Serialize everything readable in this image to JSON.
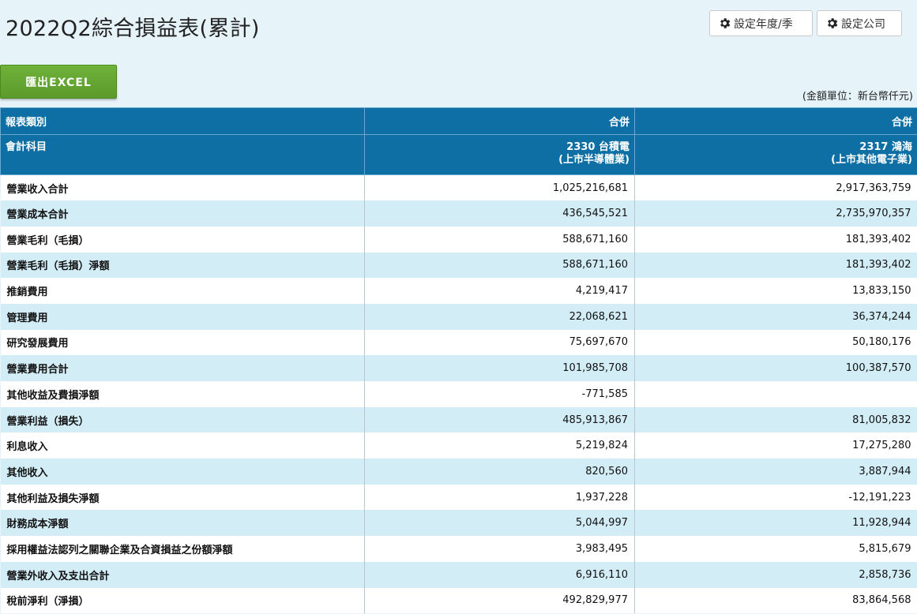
{
  "page": {
    "title": "2022Q2綜合損益表(累計)",
    "set_period_label": "設定年度/季",
    "set_company_label": "設定公司",
    "export_label": "匯出EXCEL",
    "unit_note": "(金額單位：新台幣仟元)"
  },
  "table": {
    "header_row1": {
      "label": "報表類別",
      "col1": "合併",
      "col2": "合併"
    },
    "header_row2": {
      "label": "會計科目",
      "col1_line1": "2330 台積電",
      "col1_line2": "(上市半導體業)",
      "col2_line1": "2317 鴻海",
      "col2_line2": "(上市其他電子業)"
    },
    "rows": [
      {
        "label": "營業收入合計",
        "level": 0,
        "v1": "1,025,216,681",
        "v2": "2,917,363,759"
      },
      {
        "label": "營業成本合計",
        "level": 0,
        "v1": "436,545,521",
        "v2": "2,735,970,357"
      },
      {
        "label": "營業毛利（毛損）",
        "level": 0,
        "v1": "588,671,160",
        "v2": "181,393,402"
      },
      {
        "label": "營業毛利（毛損）淨額",
        "level": 0,
        "v1": "588,671,160",
        "v2": "181,393,402"
      },
      {
        "label": "推銷費用",
        "level": 2,
        "v1": "4,219,417",
        "v2": "13,833,150"
      },
      {
        "label": "管理費用",
        "level": 2,
        "v1": "22,068,621",
        "v2": "36,374,244"
      },
      {
        "label": "研究發展費用",
        "level": 2,
        "v1": "75,697,670",
        "v2": "50,180,176"
      },
      {
        "label": "營業費用合計",
        "level": 1,
        "v1": "101,985,708",
        "v2": "100,387,570"
      },
      {
        "label": "其他收益及費損淨額",
        "level": 1,
        "v1": "-771,585",
        "v2": ""
      },
      {
        "label": "營業利益（損失）",
        "level": 0,
        "v1": "485,913,867",
        "v2": "81,005,832"
      },
      {
        "label": "利息收入",
        "level": 2,
        "v1": "5,219,824",
        "v2": "17,275,280"
      },
      {
        "label": "其他收入",
        "level": 2,
        "v1": "820,560",
        "v2": "3,887,944"
      },
      {
        "label": "其他利益及損失淨額",
        "level": 2,
        "v1": "1,937,228",
        "v2": "-12,191,223"
      },
      {
        "label": "財務成本淨額",
        "level": 2,
        "v1": "5,044,997",
        "v2": "11,928,944"
      },
      {
        "label": "採用權益法認列之關聯企業及合資損益之份額淨額",
        "level": 2,
        "v1": "3,983,495",
        "v2": "5,815,679"
      },
      {
        "label": "營業外收入及支出合計",
        "level": 1,
        "v1": "6,916,110",
        "v2": "2,858,736"
      },
      {
        "label": "稅前淨利（淨損）",
        "level": 0,
        "v1": "492,829,977",
        "v2": "83,864,568"
      }
    ]
  },
  "icons": {
    "gear": "gear-icon"
  },
  "colors": {
    "background": "#e6f4fa",
    "header_blue": "#0d6fa3",
    "row_alt": "#d3edf7",
    "excel_green": "#5c9a2a"
  }
}
